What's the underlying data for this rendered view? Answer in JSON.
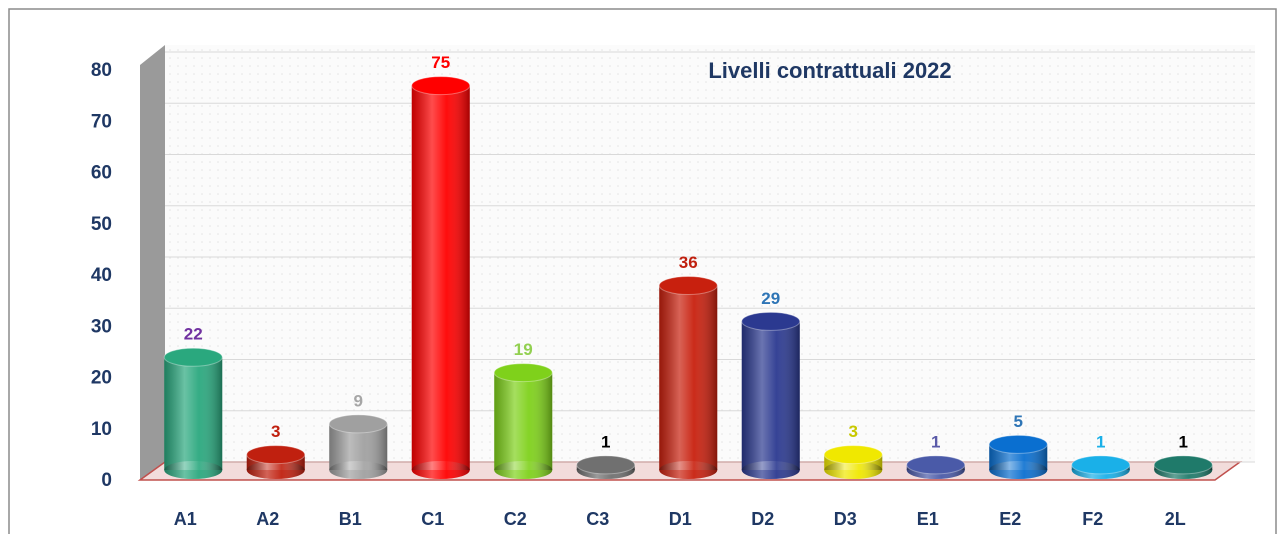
{
  "chart_data": {
    "type": "bar",
    "title": "Livelli contrattuali 2022",
    "categories": [
      "A1",
      "A2",
      "B1",
      "C1",
      "C2",
      "C3",
      "D1",
      "D2",
      "D3",
      "E1",
      "E2",
      "F2",
      "2L"
    ],
    "values": [
      22,
      3,
      9,
      75,
      19,
      1,
      36,
      29,
      3,
      1,
      5,
      1,
      1
    ],
    "colors": [
      "#2aa87e",
      "#c0200f",
      "#a0a0a0",
      "#ff0000",
      "#7fd11b",
      "#707070",
      "#c8200e",
      "#2b3990",
      "#f0e800",
      "#4a5aa8",
      "#0a6fd0",
      "#1ab0e8",
      "#1f7a6a"
    ],
    "label_colors": [
      "#7030a0",
      "#c0200f",
      "#a6a6a6",
      "#ff0000",
      "#92d050",
      "#000000",
      "#c0200f",
      "#2e75b6",
      "#c8c800",
      "#5a5aa8",
      "#2e75b6",
      "#1ab0e8",
      "#000000"
    ],
    "ylim": [
      0,
      80
    ],
    "yticks": [
      0,
      10,
      20,
      30,
      40,
      50,
      60,
      70,
      80
    ],
    "grid": true
  }
}
